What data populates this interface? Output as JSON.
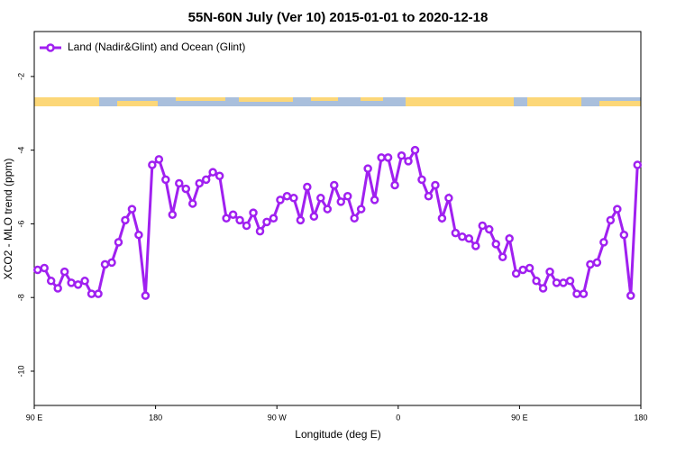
{
  "chart_data": {
    "type": "line",
    "title": "55N-60N July (Ver 10)   2015-01-01 to 2020-12-18",
    "x_label": "Longitude (deg E)",
    "y_label": "XCO2 - MLO trend (ppm)",
    "legend_position": "top-left",
    "xlim": [
      90,
      540
    ],
    "ylim": [
      -10.93,
      -0.78
    ],
    "xticks": [
      {
        "value": 90,
        "label": "90 E"
      },
      180,
      {
        "value": 270,
        "label": "90 W"
      },
      {
        "value": 360,
        "label": "0"
      },
      {
        "value": 450,
        "label": "90 E"
      },
      {
        "value": 540,
        "label": "180"
      }
    ],
    "yticks": [
      -2,
      -4,
      -6,
      -8,
      -10
    ],
    "x": [
      92.5,
      97.5,
      102.5,
      107.5,
      112.5,
      117.5,
      122.5,
      127.5,
      132.5,
      137.5,
      142.5,
      147.5,
      152.5,
      157.5,
      162.5,
      167.5,
      172.5,
      177.5,
      182.5,
      187.5,
      192.5,
      197.5,
      202.5,
      207.5,
      212.5,
      217.5,
      222.5,
      227.5,
      232.5,
      237.5,
      242.5,
      247.5,
      252.5,
      257.5,
      262.5,
      267.5,
      272.5,
      277.5,
      282.5,
      287.5,
      292.5,
      297.5,
      302.5,
      307.5,
      312.5,
      317.5,
      322.5,
      327.5,
      332.5,
      337.5,
      342.5,
      347.5,
      352.5,
      357.5,
      362.5,
      367.5,
      372.5,
      377.5,
      382.5,
      387.5,
      392.5,
      397.5,
      402.5,
      407.5,
      412.5,
      417.5,
      422.5,
      427.5,
      432.5,
      437.5,
      442.5,
      447.5,
      452.5,
      457.5,
      462.5,
      467.5,
      472.5,
      477.5,
      482.5,
      487.5,
      492.5,
      497.5,
      502.5,
      507.5,
      512.5,
      517.5,
      522.5,
      527.5,
      532.5,
      537.5
    ],
    "series": [
      {
        "name": "Land (Nadir&Glint) and Ocean (Glint)",
        "color": "#a020f0",
        "values": [
          -7.25,
          -7.2,
          -7.55,
          -7.75,
          -7.3,
          -7.6,
          -7.65,
          -7.55,
          -7.9,
          -7.9,
          -7.1,
          -7.05,
          -6.5,
          -5.9,
          -5.6,
          -6.3,
          -7.95,
          -4.4,
          -4.25,
          -4.8,
          -5.75,
          -4.9,
          -5.05,
          -5.45,
          -4.9,
          -4.8,
          -4.6,
          -4.7,
          -5.85,
          -5.75,
          -5.9,
          -6.05,
          -5.7,
          -6.2,
          -5.95,
          -5.85,
          -5.35,
          -5.25,
          -5.3,
          -5.9,
          -5.0,
          -5.8,
          -5.3,
          -5.6,
          -4.95,
          -5.4,
          -5.25,
          -5.85,
          -5.6,
          -4.5,
          -5.35,
          -4.2,
          -4.2,
          -4.95,
          -4.15,
          -4.3,
          -4.0,
          -4.8,
          -5.25,
          -4.95,
          -5.85,
          -5.3,
          -6.25,
          -6.35,
          -6.4,
          -6.6,
          -6.05,
          -6.15,
          -6.55,
          -6.9,
          -6.4,
          -7.35,
          -7.25,
          -7.2,
          -7.55,
          -7.75,
          -7.3,
          -7.6,
          -7.6,
          -7.55,
          -7.9,
          -7.9,
          -7.1,
          -7.05,
          -6.5,
          -5.9,
          -5.6,
          -6.3,
          -7.95,
          -4.4
        ]
      }
    ]
  }
}
